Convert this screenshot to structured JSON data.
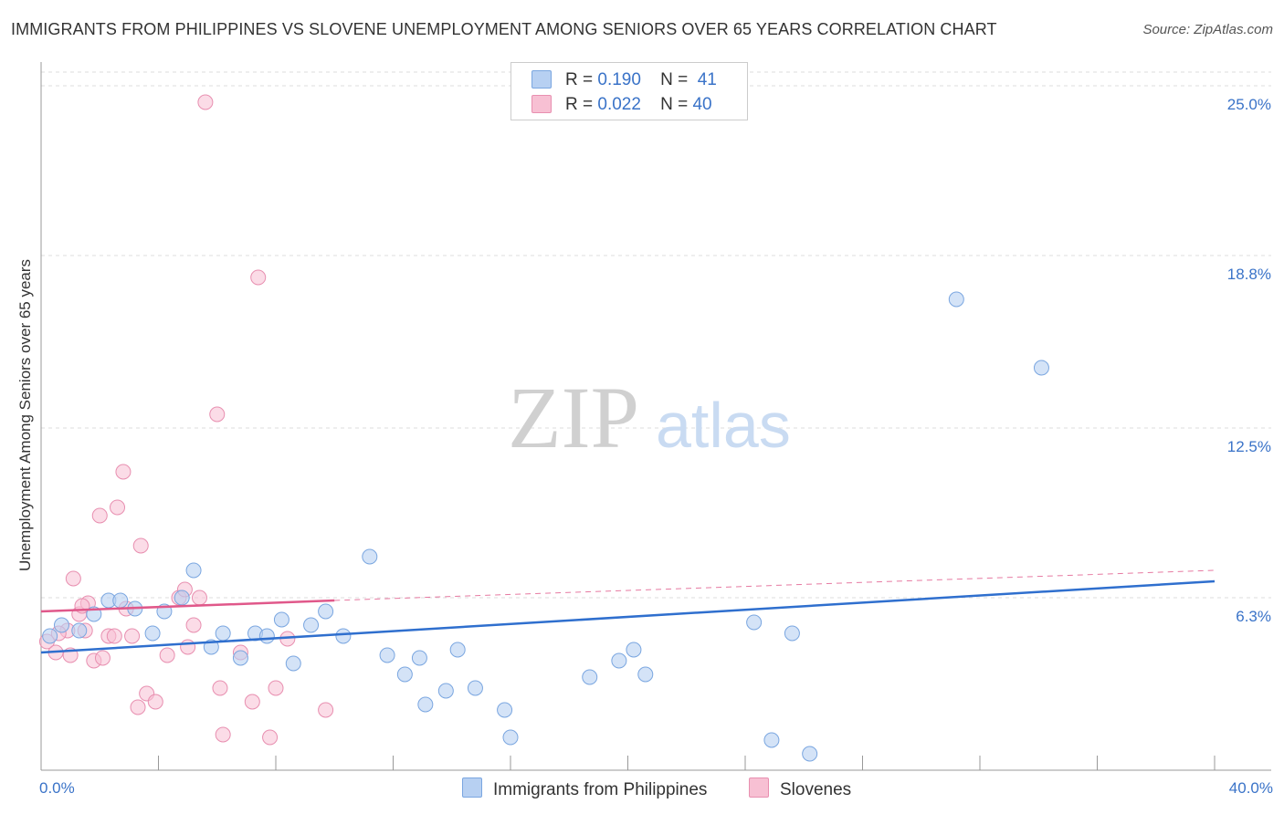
{
  "title": "IMMIGRANTS FROM PHILIPPINES VS SLOVENE UNEMPLOYMENT AMONG SENIORS OVER 65 YEARS CORRELATION CHART",
  "source": "Source: ZipAtlas.com",
  "colors": {
    "blue_fill": "#b7d0f2",
    "blue_stroke": "#7aa6e0",
    "blue_line": "#2f6fce",
    "pink_fill": "#f7c0d3",
    "pink_stroke": "#e88fb0",
    "pink_line": "#e0588a",
    "axis_label": "#3a73c8"
  },
  "legend": {
    "series1": {
      "r_label": "R =",
      "r_value": "0.190",
      "n_label": "N =",
      "n_value": "41"
    },
    "series2": {
      "r_label": "R =",
      "r_value": "0.022",
      "n_label": "N =",
      "n_value": "40"
    }
  },
  "bottom_legend": {
    "series1": "Immigrants from Philippines",
    "series2": "Slovenes"
  },
  "watermark": {
    "part1": "ZIP",
    "part2": "atlas"
  },
  "chart_data": {
    "type": "scatter",
    "title": "IMMIGRANTS FROM PHILIPPINES VS SLOVENE UNEMPLOYMENT AMONG SENIORS OVER 65 YEARS CORRELATION CHART",
    "xlabel": "",
    "ylabel": "Unemployment Among Seniors over 65 years",
    "xlim": [
      0,
      40
    ],
    "ylim": [
      0,
      25.5
    ],
    "x_tick_labels": [
      "0.0%",
      "40.0%"
    ],
    "y_ticks": [
      6.3,
      12.5,
      18.8,
      25.0
    ],
    "y_tick_labels": [
      "6.3%",
      "12.5%",
      "18.8%",
      "25.0%"
    ],
    "series": [
      {
        "name": "Immigrants from Philippines",
        "color": "#7aa6e0",
        "points": [
          [
            0.3,
            4.9
          ],
          [
            0.7,
            5.3
          ],
          [
            1.3,
            5.1
          ],
          [
            1.8,
            5.7
          ],
          [
            2.3,
            6.2
          ],
          [
            2.7,
            6.2
          ],
          [
            3.2,
            5.9
          ],
          [
            3.8,
            5.0
          ],
          [
            4.2,
            5.8
          ],
          [
            4.8,
            6.3
          ],
          [
            5.2,
            7.3
          ],
          [
            5.8,
            4.5
          ],
          [
            6.2,
            5.0
          ],
          [
            6.8,
            4.1
          ],
          [
            7.3,
            5.0
          ],
          [
            7.7,
            4.9
          ],
          [
            8.2,
            5.5
          ],
          [
            8.6,
            3.9
          ],
          [
            9.2,
            5.3
          ],
          [
            9.7,
            5.8
          ],
          [
            10.3,
            4.9
          ],
          [
            11.2,
            7.8
          ],
          [
            11.8,
            4.2
          ],
          [
            12.4,
            3.5
          ],
          [
            12.9,
            4.1
          ],
          [
            13.1,
            2.4
          ],
          [
            13.8,
            2.9
          ],
          [
            14.2,
            4.4
          ],
          [
            14.8,
            3.0
          ],
          [
            15.8,
            2.2
          ],
          [
            16.0,
            1.2
          ],
          [
            18.7,
            3.4
          ],
          [
            19.7,
            4.0
          ],
          [
            20.2,
            4.4
          ],
          [
            20.6,
            3.5
          ],
          [
            24.3,
            5.4
          ],
          [
            24.9,
            1.1
          ],
          [
            25.6,
            5.0
          ],
          [
            26.2,
            0.6
          ],
          [
            31.2,
            17.2
          ],
          [
            34.1,
            14.7
          ]
        ],
        "trend": {
          "x": [
            0,
            40
          ],
          "y": [
            4.3,
            6.9
          ]
        }
      },
      {
        "name": "Slovenes",
        "color": "#e88fb0",
        "points": [
          [
            0.2,
            4.7
          ],
          [
            0.5,
            4.3
          ],
          [
            0.9,
            5.1
          ],
          [
            1.0,
            4.2
          ],
          [
            1.1,
            7.0
          ],
          [
            1.3,
            5.7
          ],
          [
            1.5,
            5.1
          ],
          [
            1.6,
            6.1
          ],
          [
            1.8,
            4.0
          ],
          [
            2.0,
            9.3
          ],
          [
            2.1,
            4.1
          ],
          [
            2.3,
            4.9
          ],
          [
            2.5,
            4.9
          ],
          [
            2.6,
            9.6
          ],
          [
            2.8,
            10.9
          ],
          [
            2.9,
            5.9
          ],
          [
            3.1,
            4.9
          ],
          [
            3.3,
            2.3
          ],
          [
            3.4,
            8.2
          ],
          [
            3.6,
            2.8
          ],
          [
            3.9,
            2.5
          ],
          [
            4.3,
            4.2
          ],
          [
            4.7,
            6.3
          ],
          [
            4.9,
            6.6
          ],
          [
            5.0,
            4.5
          ],
          [
            5.2,
            5.3
          ],
          [
            5.4,
            6.3
          ],
          [
            5.6,
            24.4
          ],
          [
            6.0,
            13.0
          ],
          [
            6.1,
            3.0
          ],
          [
            6.2,
            1.3
          ],
          [
            6.8,
            4.3
          ],
          [
            7.2,
            2.5
          ],
          [
            7.4,
            18.0
          ],
          [
            7.8,
            1.2
          ],
          [
            8.0,
            3.0
          ],
          [
            8.4,
            4.8
          ],
          [
            9.7,
            2.2
          ],
          [
            0.6,
            5.0
          ],
          [
            1.4,
            6.0
          ]
        ],
        "trend": {
          "x": [
            0,
            10
          ],
          "y": [
            5.8,
            6.2
          ]
        },
        "trend_extension": {
          "x": [
            10,
            40
          ],
          "y": [
            6.2,
            7.3
          ]
        }
      }
    ],
    "grid": true,
    "legend_position": "top-center"
  }
}
